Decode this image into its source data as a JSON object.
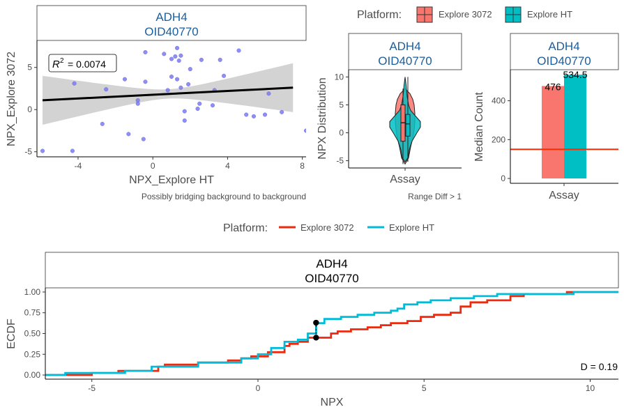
{
  "colors": {
    "explore3072": "#F8766D",
    "exploreHT": "#00BFC4",
    "ecdf3072": "#EE2A0E",
    "ecdfHT": "#00BCD8",
    "stripTitle": "#1B5E9E",
    "points": "#7B7BF0",
    "ci": "#D3D3D3",
    "threshold": "#FF2A00"
  },
  "strip": {
    "gene": "ADH4",
    "oid": "OID40770"
  },
  "top_legend": {
    "title": "Platform:",
    "items": [
      "Explore 3072",
      "Explore HT"
    ]
  },
  "bottom_legend": {
    "title": "Platform:",
    "items": [
      "Explore 3072",
      "Explore HT"
    ]
  },
  "chart_data": [
    {
      "type": "scatter",
      "xlabel": "NPX_Explore HT",
      "ylabel": "NPX_Explore 3072",
      "xlim": [
        -6.2,
        8.2
      ],
      "ylim": [
        -5.6,
        8.2
      ],
      "xticks": [
        -4,
        0,
        4,
        8
      ],
      "yticks": [
        -5,
        0,
        5
      ],
      "annotation": {
        "text": "= 0.0074",
        "symbol": "R",
        "sup": "2"
      },
      "caption": "Possibly bridging background to background",
      "regression": {
        "x": [
          -5.9,
          7.5
        ],
        "y": [
          1.1,
          2.6
        ],
        "ci_halfwidth_ends": [
          2.9,
          2.8
        ],
        "ci_halfwidth_mid": 0.55
      },
      "points": [
        [
          -5.9,
          -4.9
        ],
        [
          -4.3,
          -4.9
        ],
        [
          -4.2,
          3.1
        ],
        [
          -2.7,
          -1.7
        ],
        [
          -2.5,
          2.4
        ],
        [
          -1.5,
          3.6
        ],
        [
          -1.3,
          -2.9
        ],
        [
          -0.8,
          1.1
        ],
        [
          -0.8,
          0.7
        ],
        [
          -0.5,
          -3.5
        ],
        [
          -0.4,
          3.3
        ],
        [
          -0.4,
          6.8
        ],
        [
          0.6,
          6.6
        ],
        [
          0.8,
          2.3
        ],
        [
          1.0,
          3.9
        ],
        [
          1.0,
          6.0
        ],
        [
          1.2,
          6.3
        ],
        [
          1.3,
          7.3
        ],
        [
          1.3,
          3.6
        ],
        [
          1.4,
          5.8
        ],
        [
          1.5,
          6.4
        ],
        [
          1.5,
          2.6
        ],
        [
          1.7,
          -0.2
        ],
        [
          1.7,
          -1.3
        ],
        [
          1.9,
          3.0
        ],
        [
          2.0,
          4.8
        ],
        [
          2.4,
          0.1
        ],
        [
          2.5,
          0.7
        ],
        [
          2.6,
          5.9
        ],
        [
          3.2,
          0.5
        ],
        [
          3.3,
          2.3
        ],
        [
          3.6,
          5.9
        ],
        [
          3.8,
          4.0
        ],
        [
          4.6,
          7.0
        ],
        [
          5.0,
          -0.6
        ],
        [
          5.4,
          -0.8
        ],
        [
          6.0,
          -0.6
        ],
        [
          6.2,
          1.9
        ],
        [
          6.9,
          -0.3
        ],
        [
          8.2,
          -2.5
        ]
      ]
    },
    {
      "type": "violin",
      "xlabel": "Assay",
      "ylabel": "NPX Distribution",
      "category": "Assay",
      "ylim": [
        -6.3,
        11.3
      ],
      "yticks": [
        -5,
        0,
        5,
        10
      ],
      "caption": "Range Diff > 1",
      "series": [
        {
          "name": "Explore 3072",
          "min": -5.6,
          "q1": -1.5,
          "median": 1.8,
          "q3": 5.0,
          "max": 7.9
        },
        {
          "name": "Explore HT",
          "min": -5.2,
          "q1": -0.6,
          "median": 1.6,
          "q3": 3.3,
          "max": 10.0
        }
      ]
    },
    {
      "type": "bar",
      "xlabel": "Assay",
      "ylabel": "Median Count",
      "categories": [
        "Assay"
      ],
      "ylim": [
        -25,
        560
      ],
      "yticks": [
        0,
        200,
        400
      ],
      "threshold": 150,
      "series": [
        {
          "name": "Explore 3072",
          "values": [
            476
          ],
          "label": "476"
        },
        {
          "name": "Explore HT",
          "values": [
            534.5
          ],
          "label": "534.5"
        }
      ]
    },
    {
      "type": "line",
      "subtype": "ecdf",
      "xlabel": "NPX",
      "ylabel": "ECDF",
      "xlim": [
        -6.4,
        10.85
      ],
      "ylim": [
        -0.05,
        1.05
      ],
      "xticks": [
        -5,
        0,
        5,
        10
      ],
      "yticks": [
        "0.00",
        "0.25",
        "0.50",
        "0.75",
        "1.00"
      ],
      "annotation": "D = 0.19",
      "ks_segment": {
        "x": 1.75,
        "y_from": 0.45,
        "y_to": 0.63
      },
      "series": [
        {
          "name": "Explore 3072",
          "x": [
            -6.4,
            -5.0,
            -4.2,
            -3.0,
            -2.8,
            -1.8,
            -0.9,
            -0.5,
            -0.2,
            0.3,
            0.8,
            0.95,
            1.2,
            1.5,
            1.75,
            2.2,
            2.4,
            2.8,
            3.3,
            3.7,
            4.0,
            4.5,
            4.9,
            5.3,
            5.8,
            6.1,
            6.4,
            6.9,
            7.6,
            8.0,
            8.5,
            9.3,
            10.85
          ],
          "y": [
            0.0,
            0.025,
            0.05,
            0.1,
            0.125,
            0.15,
            0.175,
            0.2,
            0.225,
            0.275,
            0.35,
            0.375,
            0.4,
            0.45,
            0.45,
            0.5,
            0.525,
            0.55,
            0.575,
            0.6,
            0.625,
            0.65,
            0.7,
            0.725,
            0.75,
            0.825,
            0.875,
            0.9,
            0.95,
            0.975,
            0.975,
            1.0,
            1.0
          ]
        },
        {
          "name": "Explore HT",
          "x": [
            -6.4,
            -5.8,
            -5.2,
            -4.0,
            -3.2,
            -1.8,
            -1.2,
            -0.5,
            0.0,
            0.4,
            0.8,
            1.2,
            1.5,
            1.75,
            2.0,
            2.5,
            3.0,
            3.5,
            4.0,
            4.2,
            4.4,
            4.8,
            5.2,
            5.8,
            6.5,
            7.2,
            8.5,
            9.5,
            10.85
          ],
          "y": [
            0.0,
            0.025,
            0.025,
            0.05,
            0.1,
            0.15,
            0.15,
            0.2,
            0.25,
            0.325,
            0.4,
            0.425,
            0.5,
            0.625,
            0.675,
            0.7,
            0.725,
            0.75,
            0.775,
            0.8,
            0.85,
            0.875,
            0.9,
            0.925,
            0.95,
            0.975,
            0.975,
            1.0,
            1.0
          ]
        }
      ]
    }
  ]
}
